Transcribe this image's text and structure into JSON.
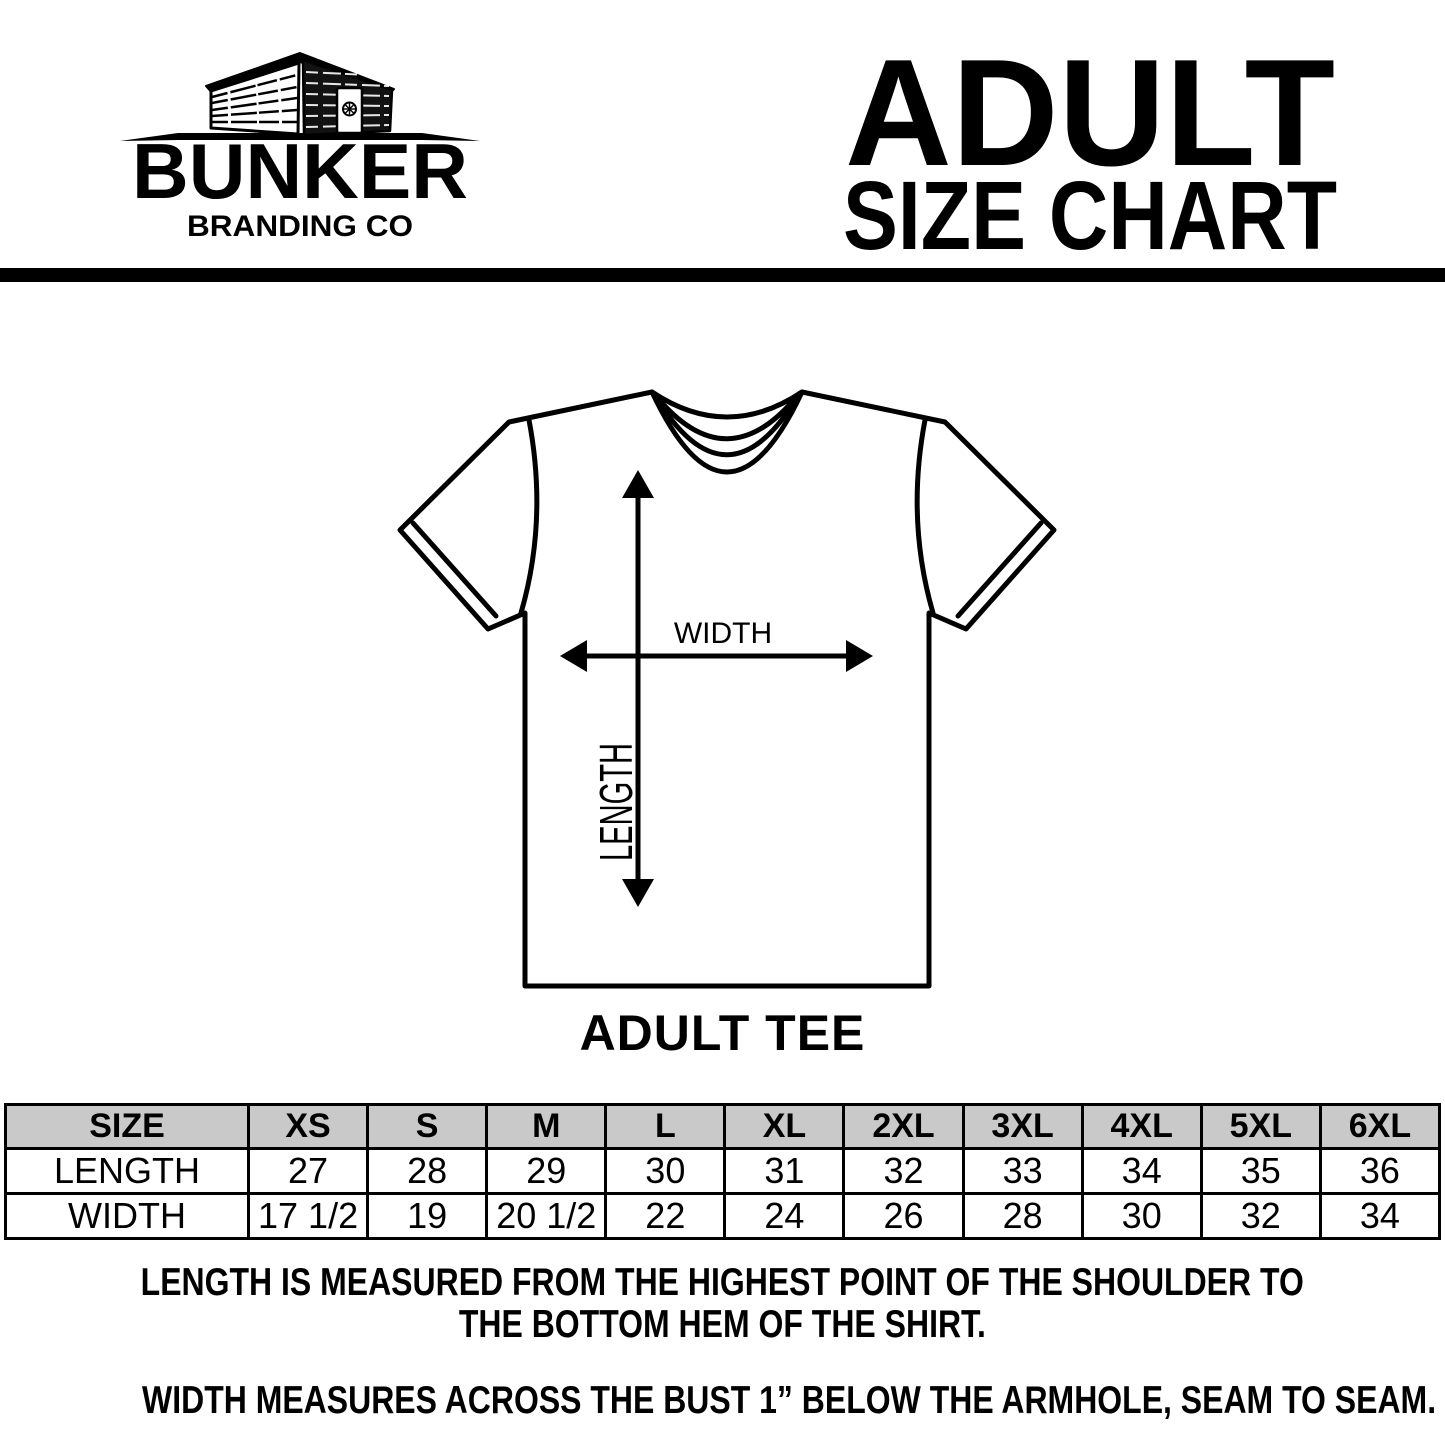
{
  "brand": {
    "name": "BUNKER",
    "subtitle": "BRANDING CO"
  },
  "header": {
    "title_line1": "ADULT",
    "title_line2": "SIZE CHART"
  },
  "diagram": {
    "width_label": "WIDTH",
    "length_label": "LENGTH",
    "caption": "ADULT TEE"
  },
  "chart_data": {
    "type": "table",
    "columns": [
      "SIZE",
      "XS",
      "S",
      "M",
      "L",
      "XL",
      "2XL",
      "3XL",
      "4XL",
      "5XL",
      "6XL"
    ],
    "rows": [
      {
        "label": "LENGTH",
        "values": [
          "27",
          "28",
          "29",
          "30",
          "31",
          "32",
          "33",
          "34",
          "35",
          "36"
        ]
      },
      {
        "label": "WIDTH",
        "values": [
          "17 1/2",
          "19",
          "20 1/2",
          "22",
          "24",
          "26",
          "28",
          "30",
          "32",
          "34"
        ]
      }
    ]
  },
  "notes": {
    "length_note_lines": [
      "LENGTH IS MEASURED FROM THE HIGHEST POINT OF THE SHOULDER TO",
      "THE BOTTOM HEM OF THE SHIRT."
    ],
    "width_note": "WIDTH MEASURES ACROSS THE BUST 1” BELOW THE ARMHOLE, SEAM TO SEAM."
  },
  "colors": {
    "ink": "#000000",
    "table_header_bg": "#c9c9c9",
    "background": "#ffffff"
  }
}
